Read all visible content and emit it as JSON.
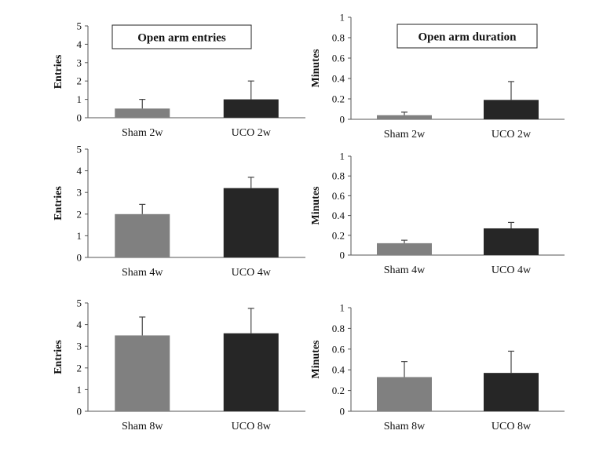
{
  "chart_data": [
    {
      "type": "bar",
      "title": "Open arm entries",
      "ylabel": "Entries",
      "ylim": [
        0,
        5
      ],
      "yticks": [
        "0",
        "1",
        "2",
        "3",
        "4",
        "5"
      ],
      "categories": [
        "Sham 2w",
        "UCO 2w"
      ],
      "values": [
        0.5,
        1.0
      ],
      "errors": [
        0.5,
        1.0
      ],
      "colors": [
        "#808080",
        "#262626"
      ]
    },
    {
      "type": "bar",
      "title": "Open arm duration",
      "ylabel": "Minutes",
      "ylim": [
        0,
        1
      ],
      "yticks": [
        "0",
        "0.2",
        "0.4",
        "0.6",
        "0.8",
        "1"
      ],
      "categories": [
        "Sham 2w",
        "UCO 2w"
      ],
      "values": [
        0.04,
        0.19
      ],
      "errors": [
        0.03,
        0.18
      ],
      "colors": [
        "#808080",
        "#262626"
      ]
    },
    {
      "type": "bar",
      "title": "",
      "ylabel": "Entries",
      "ylim": [
        0,
        5
      ],
      "yticks": [
        "0",
        "1",
        "2",
        "3",
        "4",
        "5"
      ],
      "categories": [
        "Sham 4w",
        "UCO 4w"
      ],
      "values": [
        2.0,
        3.2
      ],
      "errors": [
        0.45,
        0.5
      ],
      "colors": [
        "#808080",
        "#262626"
      ]
    },
    {
      "type": "bar",
      "title": "",
      "ylabel": "Minutes",
      "ylim": [
        0,
        1
      ],
      "yticks": [
        "0",
        "0.2",
        "0.4",
        "0.6",
        "0.8",
        "1"
      ],
      "categories": [
        "Sham 4w",
        "UCO 4w"
      ],
      "values": [
        0.12,
        0.27
      ],
      "errors": [
        0.03,
        0.06
      ],
      "colors": [
        "#808080",
        "#262626"
      ]
    },
    {
      "type": "bar",
      "title": "",
      "ylabel": "Entries",
      "ylim": [
        0,
        5
      ],
      "yticks": [
        "0",
        "1",
        "2",
        "3",
        "4",
        "5"
      ],
      "categories": [
        "Sham 8w",
        "UCO 8w"
      ],
      "values": [
        3.5,
        3.6
      ],
      "errors": [
        0.85,
        1.15
      ],
      "colors": [
        "#808080",
        "#262626"
      ]
    },
    {
      "type": "bar",
      "title": "",
      "ylabel": "Minutes",
      "ylim": [
        0,
        1
      ],
      "yticks": [
        "0",
        "0.2",
        "0.4",
        "0.6",
        "0.8",
        "1"
      ],
      "categories": [
        "Sham 8w",
        "UCO 8w"
      ],
      "values": [
        0.33,
        0.37
      ],
      "errors": [
        0.15,
        0.21
      ],
      "colors": [
        "#808080",
        "#262626"
      ]
    }
  ]
}
